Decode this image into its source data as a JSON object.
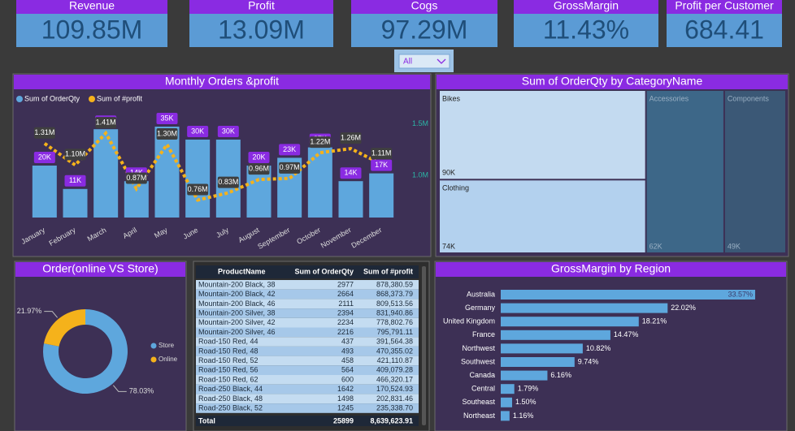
{
  "kpis": [
    {
      "title": "Revenue",
      "value": "109.85M"
    },
    {
      "title": "Profit",
      "value": "13.09M"
    },
    {
      "title": "Cogs",
      "value": "97.29M"
    },
    {
      "title": "GrossMargin",
      "value": "11.43%"
    },
    {
      "title": "Profit per Customer",
      "value": "684.41"
    }
  ],
  "slicer": "All",
  "chart_data": [
    {
      "type": "combo",
      "title": "Monthly Orders &profit",
      "categories": [
        "January",
        "February",
        "March",
        "April",
        "May",
        "June",
        "July",
        "August",
        "September",
        "October",
        "November",
        "December"
      ],
      "series": [
        {
          "name": "Sum of OrderQty",
          "type": "bar",
          "color": "#5ea7dd",
          "values": [
            20000,
            11000,
            34000,
            14000,
            35000,
            30000,
            30000,
            20000,
            23000,
            27000,
            14000,
            17000
          ],
          "value_labels": [
            "20K",
            "11K",
            "34K",
            "14K",
            "35K",
            "30K",
            "30K",
            "20K",
            "23K",
            "27K",
            "14K",
            "17K"
          ]
        },
        {
          "name": "Sum of #profit",
          "type": "line",
          "axis": "y2",
          "color": "#f5b21b",
          "values": [
            1310000,
            1100000,
            1410000,
            870000,
            1300000,
            760000,
            830000,
            960000,
            970000,
            1220000,
            1260000,
            1110000
          ],
          "value_labels": [
            "1.31M",
            "1.10M",
            "1.41M",
            "0.87M",
            "1.30M",
            "0.76M",
            "0.83M",
            "0.96M",
            "0.97M",
            "1.22M",
            "1.26M",
            "1.11M"
          ]
        }
      ],
      "ylim": [
        0,
        40000
      ],
      "y2lim": [
        590000,
        1600000
      ],
      "y2ticks": [
        {
          "value": 1000000,
          "label": "1.0M"
        },
        {
          "value": 1500000,
          "label": "1.5M"
        }
      ],
      "legend": "top-left"
    },
    {
      "type": "treemap",
      "title": "Sum of OrderQty by CategoryName",
      "categories": [
        "Bikes",
        "Clothing",
        "Accessories",
        "Components"
      ],
      "values": [
        90000,
        74000,
        62000,
        49000
      ],
      "value_labels": [
        "90K",
        "74K",
        "62K",
        "49K"
      ],
      "colors": [
        "#c3daf0",
        "#b3d1ee",
        "#3d6788",
        "#3b5876"
      ]
    },
    {
      "type": "donut",
      "title": "Order(online VS Store)",
      "categories": [
        "Store",
        "Online"
      ],
      "values": [
        78.03,
        21.97
      ],
      "value_labels": [
        "78.03%",
        "21.97%"
      ],
      "colors": [
        "#5ea7dd",
        "#f5b21b"
      ],
      "legend": "right"
    },
    {
      "type": "hbar",
      "title": "GrossMargin by Region",
      "categories": [
        "Australia",
        "Germany",
        "United Kingdom",
        "France",
        "Northwest",
        "Southwest",
        "Canada",
        "Central",
        "Southeast",
        "Northeast"
      ],
      "values": [
        33.57,
        22.02,
        18.21,
        14.47,
        10.82,
        9.74,
        6.16,
        1.79,
        1.5,
        1.16
      ],
      "value_labels": [
        "33.57%",
        "22.02%",
        "18.21%",
        "14.47%",
        "10.82%",
        "9.74%",
        "6.16%",
        "1.79%",
        "1.50%",
        "1.16%"
      ],
      "color": "#5ea7dd",
      "xlim": [
        0,
        34
      ]
    }
  ],
  "table": {
    "columns": [
      "ProductName",
      "Sum of OrderQty",
      "Sum of #profit"
    ],
    "rows": [
      [
        "Mountain-200 Black, 38",
        "2977",
        "878,380.59"
      ],
      [
        "Mountain-200 Black, 42",
        "2664",
        "868,373.79"
      ],
      [
        "Mountain-200 Black, 46",
        "2111",
        "809,513.56"
      ],
      [
        "Mountain-200 Silver, 38",
        "2394",
        "831,940.86"
      ],
      [
        "Mountain-200 Silver, 42",
        "2234",
        "778,802.76"
      ],
      [
        "Mountain-200 Silver, 46",
        "2216",
        "795,791.11"
      ],
      [
        "Road-150 Red, 44",
        "437",
        "391,564.38"
      ],
      [
        "Road-150 Red, 48",
        "493",
        "470,355.02"
      ],
      [
        "Road-150 Red, 52",
        "458",
        "421,110.87"
      ],
      [
        "Road-150 Red, 56",
        "564",
        "409,079.28"
      ],
      [
        "Road-150 Red, 62",
        "600",
        "466,320.17"
      ],
      [
        "Road-250 Black, 44",
        "1642",
        "170,524.93"
      ],
      [
        "Road-250 Black, 48",
        "1498",
        "202,831.46"
      ],
      [
        "Road-250 Black, 52",
        "1245",
        "235,338.70"
      ]
    ],
    "total": [
      "Total",
      "25899",
      "8,639,623.91"
    ]
  }
}
